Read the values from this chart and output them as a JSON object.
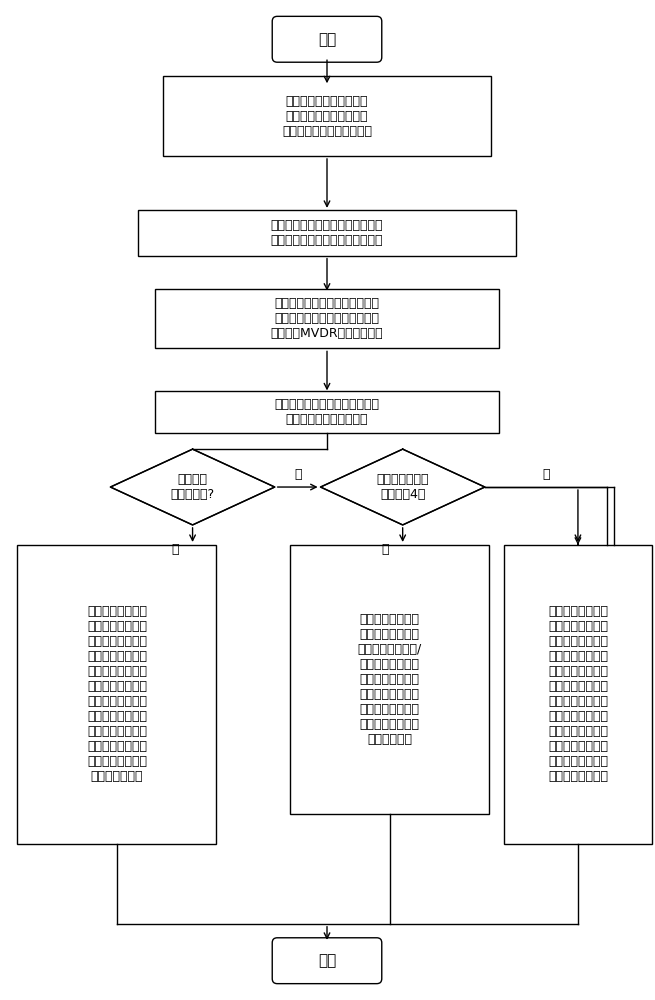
{
  "bg_color": "#ffffff",
  "nodes": {
    "start_text": "开始",
    "box1_text": "信号处理系统依据信号不\n同来向入射信号个数，划\n分传感器阵列为多个子阵列",
    "box2_text": "通过空间平滑处理，由各子阵列协\n方差矩阵得到满秩的信号空域矩阵",
    "box3_text": "依据已知多径信号的部分来向，\n构建基于子阵列的最小方差无畸\n变响应（MVDR）波束形成器",
    "box4_text": "存储该波束形成器的输出数据和\n对应的各传感器接收数据",
    "d1_text": "噪声功率\n恒定且已知?",
    "d2_text": "传感器数量超过\n信号个数4倍",
    "bl_text": "计算最小方差无畸\n变响应波束形成器\n输出数据与各个传\n感器接收数据的互\n相关矢量，该矢量\n再减去子阵列的最\n小方差无畸变响应\n波束形成器权值与\n噪声功率的乘积，\n结果用于构建基于\n全阵列的最小均方\n误差波束形成器",
    "bm_text": "计算最小方差无畸\n变响应波束形成器\n输出数据与子阵列/\n之外的传感器接收\n数据互相关矢量，\n结果用于构建基于\n子阵列之外传感器\n阵列的最小均方误\n差波束形成器",
    "br_text": "将各个传感器数据\n经过一定延时后与\n最小方差无畸变响\n应波束形成器输出\n数据进行互相关计\n算，结果用于构建\n基于全阵列的最小\n均方误差波束形成\n器。而如果多径信\n号本身具有周期性\n，那么选择延时量\n接近多径信号周期",
    "end_text": "结束"
  },
  "labels": {
    "d1_no": "否",
    "d1_yes": "是",
    "d2_no": "否",
    "d2_yes": "是"
  }
}
